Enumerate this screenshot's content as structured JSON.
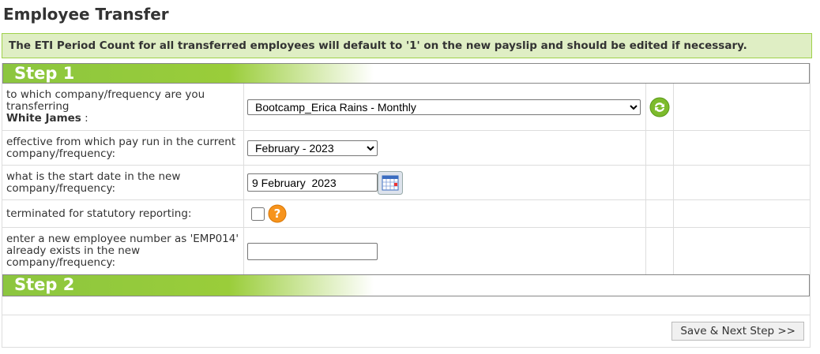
{
  "page_title": "Employee Transfer",
  "notice": "The ETI Period Count for all transferred employees will default to '1' on the new payslip and should be edited if necessary.",
  "step1": "Step 1",
  "step2": "Step 2",
  "rows": {
    "company_label": "to which company/frequency are you transferring",
    "employee_name": "White James",
    "company_suffix": " :",
    "company_value": "Bootcamp_Erica Rains - Monthly",
    "payrun_label": "effective from which pay run in the current company/frequency:",
    "payrun_value": "February - 2023",
    "startdate_label": "what is the start date in the new company/frequency:",
    "startdate_value": "9 February  2023",
    "terminated_label": "terminated for statutory reporting:",
    "empnum_label": "enter a new employee number as 'EMP014' already exists in the new company/frequency:",
    "empnum_value": ""
  },
  "save_label": "Save & Next Step >>"
}
